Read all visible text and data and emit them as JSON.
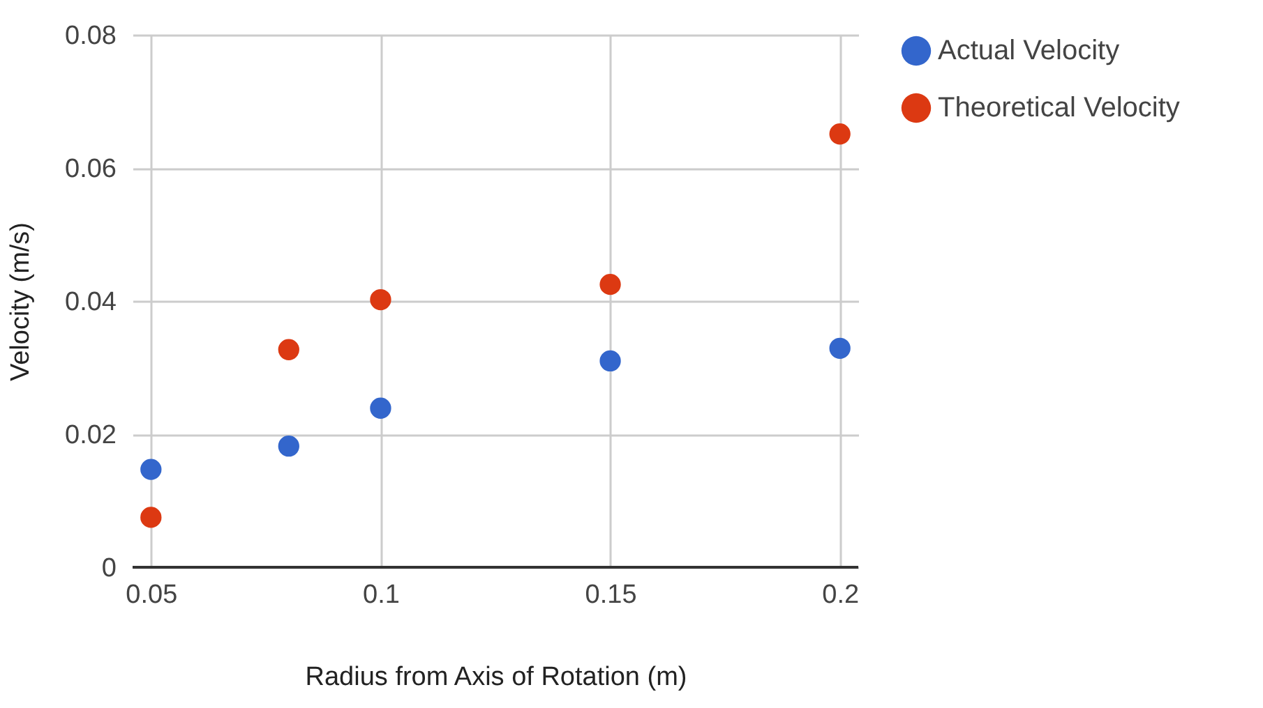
{
  "chart_data": {
    "type": "scatter",
    "xlabel": "Radius from Axis of Rotation (m)",
    "ylabel": "Velocity (m/s)",
    "x": [
      0.05,
      0.08,
      0.1,
      0.15,
      0.2
    ],
    "series": [
      {
        "name": "Actual Velocity",
        "color": "#3366cc",
        "values": [
          0.0147,
          0.0182,
          0.0239,
          0.031,
          0.0329
        ]
      },
      {
        "name": "Theoretical Velocity",
        "color": "#dc3912",
        "values": [
          0.0075,
          0.0327,
          0.0402,
          0.0425,
          0.0651
        ]
      }
    ],
    "xlim": [
      0.046,
      0.204
    ],
    "xticks": [
      0.05,
      0.1,
      0.15,
      0.2
    ],
    "ylim": [
      0,
      0.08
    ],
    "yticks": [
      0,
      0.02,
      0.04,
      0.06,
      0.08
    ],
    "grid": true,
    "legend": "top right",
    "marker": "circle"
  }
}
